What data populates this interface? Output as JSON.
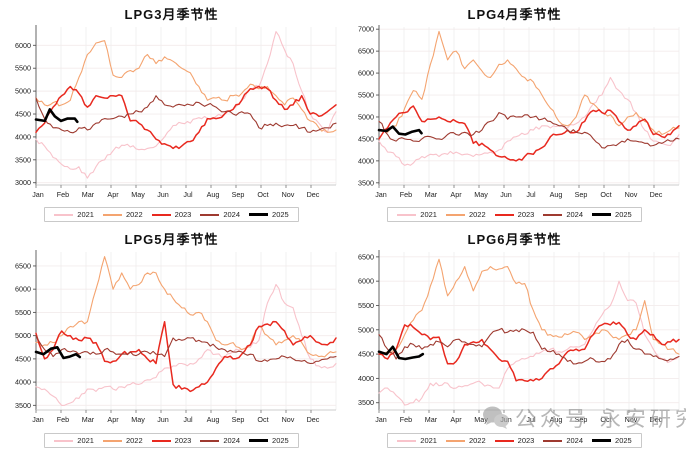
{
  "page": {
    "background": "#ffffff"
  },
  "months": [
    "Jan",
    "Feb",
    "Mar",
    "Apr",
    "May",
    "Jun",
    "Jul",
    "Aug",
    "Sep",
    "Oct",
    "Nov",
    "Dec"
  ],
  "legend_years": [
    "2021",
    "2022",
    "2023",
    "2024",
    "2025"
  ],
  "series_colors": {
    "2021": "#f8c3cb",
    "2022": "#f4a470",
    "2023": "#e8291f",
    "2024": "#9e3a30",
    "2025": "#000000"
  },
  "watermark": {
    "text": "公众号 永安研究",
    "icon": "wechat-icon",
    "color": "#a6a6a6"
  },
  "chart_data": [
    {
      "type": "line",
      "title": "LPG3月季节性",
      "xlabel": "",
      "ylabel": "",
      "ylim": [
        2950,
        6400
      ],
      "yticks": [
        3000,
        3500,
        4000,
        4500,
        5000,
        5500,
        6000
      ],
      "grid": true,
      "legend_position": "bottom",
      "series": [
        {
          "name": "2021",
          "color": "#f8c3cb",
          "values": [
            3950,
            3800,
            3550,
            3400,
            3300,
            3350,
            3100,
            3350,
            3500,
            3700,
            3820,
            3780,
            3720,
            3750,
            3800,
            4000,
            4250,
            4300,
            4300,
            4420,
            4400,
            4450,
            4500,
            4600,
            4800,
            5050,
            5100,
            5600,
            6300,
            5900,
            5600,
            5000,
            4500,
            4300,
            4100,
            4550
          ]
        },
        {
          "name": "2022",
          "color": "#f4a470",
          "values": [
            4850,
            4700,
            4750,
            4700,
            4800,
            5300,
            5800,
            6050,
            6100,
            5350,
            5300,
            5450,
            5500,
            5800,
            5600,
            5750,
            5650,
            5500,
            5400,
            5100,
            4800,
            4850,
            4800,
            4900,
            4950,
            5150,
            5050,
            5100,
            4900,
            4700,
            4850,
            4600,
            4350,
            4200,
            4100,
            4150
          ]
        },
        {
          "name": "2023",
          "color": "#e8291f",
          "values": [
            4100,
            4300,
            4650,
            4900,
            5100,
            4950,
            4650,
            4900,
            4850,
            4900,
            4900,
            4350,
            4300,
            4150,
            3950,
            3850,
            3750,
            3800,
            3900,
            4100,
            4400,
            4400,
            4500,
            4600,
            4800,
            5050,
            5100,
            5050,
            4800,
            4600,
            4700,
            4900,
            4500,
            4450,
            4550,
            4700
          ]
        },
        {
          "name": "2024",
          "color": "#9e3a30",
          "values": [
            4850,
            4400,
            4200,
            4150,
            4100,
            4200,
            4150,
            4300,
            4400,
            4400,
            4450,
            4500,
            4550,
            4650,
            4900,
            4700,
            4650,
            4700,
            4700,
            4750,
            4700,
            4650,
            4550,
            4500,
            4550,
            4500,
            4200,
            4250,
            4300,
            4250,
            4250,
            4200,
            4100,
            4150,
            4200,
            4300
          ]
        },
        {
          "name": "2025",
          "color": "#000000",
          "x": [
            0,
            0.35,
            0.55,
            0.75,
            1.0,
            1.25,
            1.55,
            1.65
          ],
          "values": [
            4380,
            4350,
            4600,
            4450,
            4350,
            4400,
            4400,
            4330
          ]
        }
      ]
    },
    {
      "type": "line",
      "title": "LPG4月季节性",
      "xlabel": "",
      "ylabel": "",
      "ylim": [
        3450,
        7050
      ],
      "yticks": [
        3500,
        4000,
        4500,
        5000,
        5500,
        6000,
        6500,
        7000
      ],
      "grid": true,
      "legend_position": "bottom",
      "series": [
        {
          "name": "2021",
          "color": "#f8c3cb",
          "values": [
            4450,
            4200,
            4100,
            3900,
            3950,
            4100,
            4150,
            4100,
            4150,
            4200,
            4150,
            4100,
            4150,
            4200,
            4250,
            4450,
            4550,
            4600,
            4700,
            4800,
            4750,
            4800,
            4750,
            4850,
            5000,
            5300,
            5500,
            5900,
            5600,
            5400,
            5100,
            4700,
            4450,
            4400,
            4350,
            4600
          ]
        },
        {
          "name": "2022",
          "color": "#f4a470",
          "values": [
            4700,
            4650,
            4800,
            5200,
            5600,
            5400,
            6200,
            6950,
            6300,
            6500,
            6100,
            6300,
            6050,
            5900,
            6200,
            6300,
            6100,
            5900,
            5800,
            5500,
            5200,
            4900,
            4800,
            5000,
            5500,
            5300,
            5100,
            5050,
            4800,
            5000,
            5100,
            4900,
            4700,
            4600,
            4700,
            4750
          ]
        },
        {
          "name": "2023",
          "color": "#e8291f",
          "values": [
            4500,
            4750,
            5000,
            5100,
            5250,
            4900,
            4950,
            5000,
            4900,
            4900,
            4850,
            4400,
            4400,
            4250,
            4100,
            4050,
            4000,
            4100,
            4150,
            4300,
            4550,
            4600,
            4700,
            4650,
            4900,
            5150,
            5100,
            5150,
            4900,
            4700,
            4800,
            4950,
            4600,
            4550,
            4600,
            4800
          ]
        },
        {
          "name": "2024",
          "color": "#9e3a30",
          "values": [
            4900,
            4600,
            4450,
            4500,
            4450,
            4500,
            4550,
            4500,
            4600,
            4600,
            4650,
            4600,
            4700,
            4900,
            5100,
            4950,
            5000,
            5050,
            5000,
            4950,
            4900,
            4800,
            4700,
            4650,
            4650,
            4500,
            4300,
            4350,
            4400,
            4500,
            4450,
            4400,
            4350,
            4400,
            4450,
            4500
          ]
        },
        {
          "name": "2025",
          "color": "#000000",
          "x": [
            0,
            0.3,
            0.55,
            0.8,
            1.05,
            1.3,
            1.6,
            1.7
          ],
          "values": [
            4700,
            4680,
            4780,
            4620,
            4600,
            4660,
            4700,
            4630
          ]
        }
      ]
    },
    {
      "type": "line",
      "title": "LPG5月季节性",
      "xlabel": "",
      "ylabel": "",
      "ylim": [
        3400,
        6800
      ],
      "yticks": [
        3500,
        4000,
        4500,
        5000,
        5500,
        6000,
        6500
      ],
      "grid": true,
      "legend_position": "bottom",
      "series": [
        {
          "name": "2021",
          "color": "#f8c3cb",
          "values": [
            3900,
            3850,
            3700,
            3500,
            3550,
            3650,
            3850,
            3800,
            3900,
            3850,
            3900,
            3950,
            3950,
            4050,
            4100,
            4300,
            4350,
            4400,
            4400,
            4500,
            4700,
            4600,
            4550,
            4650,
            4700,
            4750,
            4900,
            5700,
            6100,
            5700,
            5600,
            5000,
            4500,
            4350,
            4300,
            4400
          ]
        },
        {
          "name": "2022",
          "color": "#f4a470",
          "values": [
            4850,
            4800,
            4850,
            5000,
            5200,
            5300,
            5300,
            6000,
            6700,
            6000,
            6350,
            6000,
            6100,
            6350,
            6350,
            6000,
            5800,
            5600,
            5450,
            5500,
            5300,
            4900,
            4800,
            4850,
            4700,
            4800,
            5200,
            5000,
            4800,
            4900,
            5000,
            4850,
            4600,
            4550,
            4600,
            4650
          ]
        },
        {
          "name": "2023",
          "color": "#e8291f",
          "values": [
            5050,
            4500,
            4700,
            5100,
            5000,
            4900,
            4950,
            4850,
            4450,
            4450,
            4600,
            4650,
            4700,
            4500,
            4400,
            5300,
            3950,
            3850,
            3800,
            3900,
            4000,
            4300,
            4550,
            4500,
            4600,
            4800,
            5200,
            5250,
            5300,
            5100,
            4800,
            4900,
            5000,
            4850,
            4800,
            4950
          ]
        },
        {
          "name": "2024",
          "color": "#9e3a30",
          "values": [
            5000,
            4700,
            4550,
            4700,
            4650,
            4600,
            4650,
            4600,
            4700,
            4650,
            4600,
            4650,
            4600,
            4650,
            4600,
            4550,
            4950,
            4900,
            4950,
            4900,
            4850,
            4750,
            4700,
            4650,
            4650,
            4600,
            4450,
            4450,
            4500,
            4550,
            4500,
            4450,
            4400,
            4450,
            4500,
            4550
          ]
        },
        {
          "name": "2025",
          "color": "#000000",
          "x": [
            0,
            0.3,
            0.6,
            0.85,
            1.1,
            1.35,
            1.6,
            1.75
          ],
          "values": [
            4650,
            4600,
            4720,
            4750,
            4520,
            4550,
            4600,
            4540
          ]
        }
      ]
    },
    {
      "type": "line",
      "title": "LPG6月季节性",
      "xlabel": "",
      "ylabel": "",
      "ylim": [
        3350,
        6600
      ],
      "yticks": [
        3500,
        4000,
        4500,
        5000,
        5500,
        6000,
        6500
      ],
      "grid": true,
      "legend_position": "bottom",
      "series": [
        {
          "name": "2021",
          "color": "#f8c3cb",
          "values": [
            3700,
            3800,
            3650,
            3450,
            3500,
            3600,
            3900,
            3850,
            3900,
            3800,
            3850,
            3900,
            3900,
            3850,
            3800,
            4200,
            4350,
            4400,
            4450,
            4550,
            4600,
            4550,
            4600,
            4650,
            4700,
            5000,
            5300,
            5500,
            6000,
            5600,
            5550,
            4900,
            4600,
            4400,
            4350,
            4450
          ]
        },
        {
          "name": "2022",
          "color": "#f4a470",
          "values": [
            4500,
            4550,
            4600,
            4900,
            5200,
            5400,
            5900,
            6450,
            5700,
            6000,
            6300,
            5800,
            6200,
            6300,
            6250,
            6300,
            5950,
            5950,
            5400,
            5000,
            4900,
            4850,
            4900,
            4950,
            4800,
            4900,
            5000,
            4900,
            4800,
            4900,
            5000,
            5600,
            4800,
            4700,
            4600,
            4500
          ]
        },
        {
          "name": "2023",
          "color": "#e8291f",
          "values": [
            4500,
            4400,
            4600,
            5100,
            5050,
            4900,
            4800,
            4850,
            4300,
            4350,
            4700,
            4750,
            4800,
            4600,
            4400,
            4350,
            3950,
            3950,
            3950,
            4000,
            4200,
            4300,
            4550,
            4600,
            4600,
            4900,
            5100,
            5100,
            5150,
            4900,
            4800,
            5000,
            4900,
            4700,
            4750,
            4800
          ]
        },
        {
          "name": "2024",
          "color": "#9e3a30",
          "values": [
            4900,
            4600,
            4400,
            4650,
            4700,
            4600,
            4700,
            4750,
            4650,
            4800,
            4750,
            4700,
            4650,
            4900,
            5000,
            4950,
            5000,
            5000,
            4950,
            4600,
            4550,
            4500,
            4350,
            4300,
            4350,
            4400,
            4350,
            4400,
            4700,
            4800,
            4600,
            4500,
            4450,
            4400,
            4400,
            4450
          ]
        },
        {
          "name": "2025",
          "color": "#000000",
          "x": [
            0,
            0.3,
            0.55,
            0.8,
            1.05,
            1.35,
            1.6,
            1.75
          ],
          "values": [
            4550,
            4500,
            4650,
            4420,
            4400,
            4430,
            4450,
            4500
          ]
        }
      ]
    }
  ]
}
